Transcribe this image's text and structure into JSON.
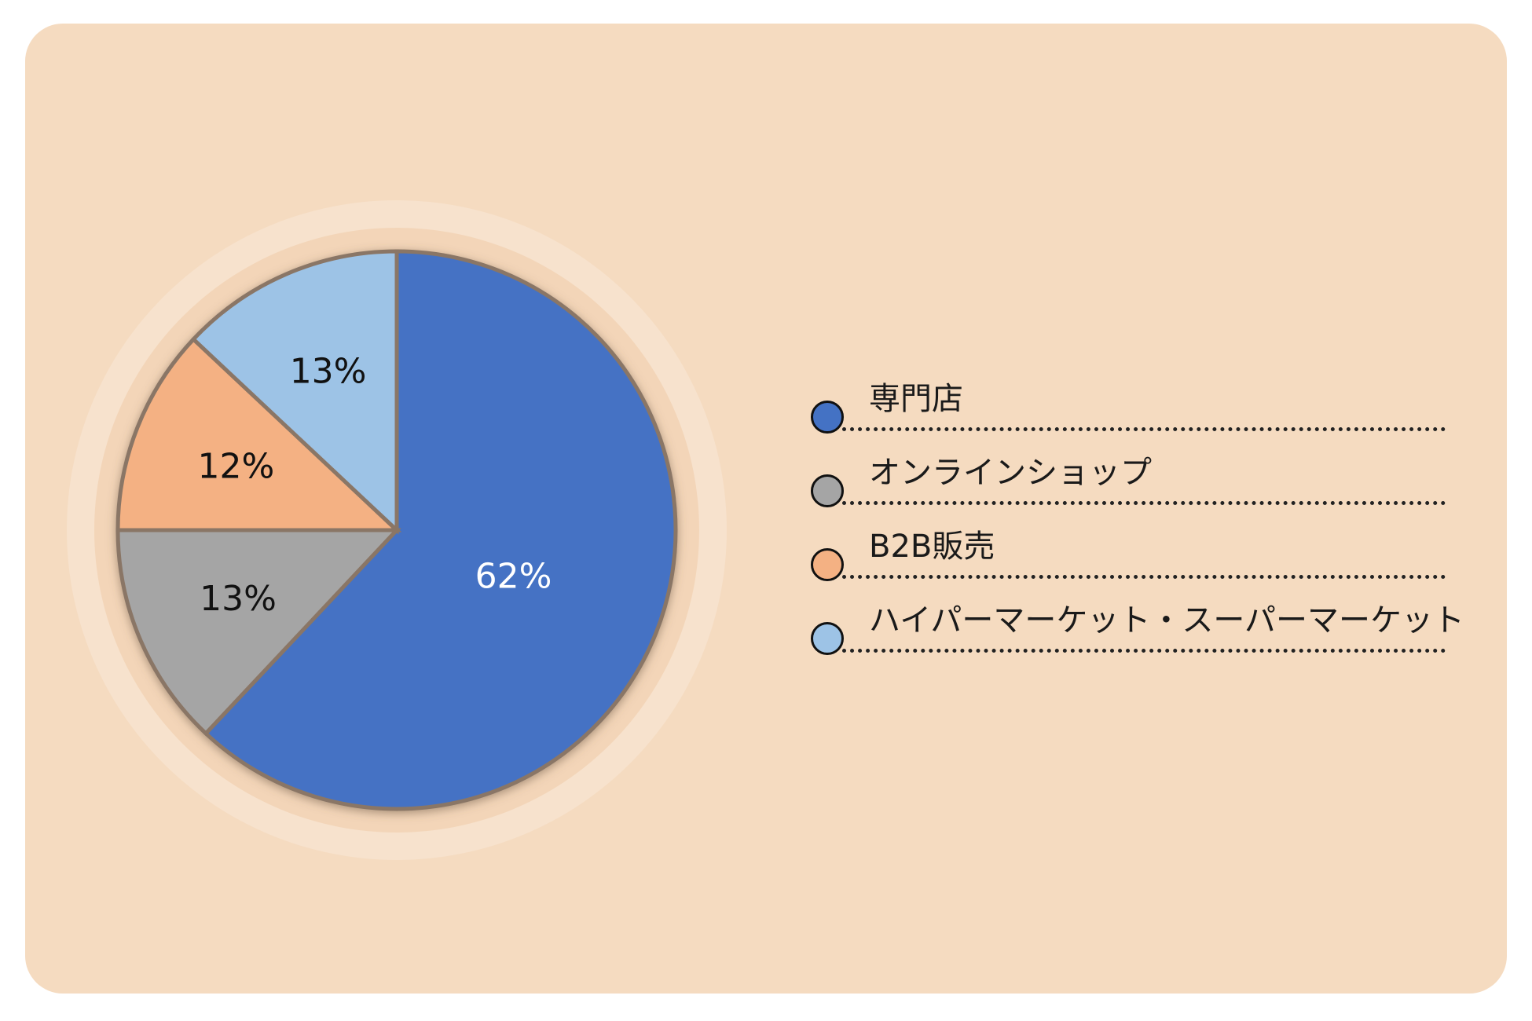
{
  "chart_data": {
    "type": "pie",
    "title": "",
    "slices": [
      {
        "label": "専門店",
        "value": 62,
        "value_label": "62%",
        "color": "#4472c4",
        "text_color": "#ffffff"
      },
      {
        "label": "オンラインショップ",
        "value": 13,
        "value_label": "13%",
        "color": "#a5a5a5",
        "text_color": "#111111"
      },
      {
        "label": "B2B販売",
        "value": 12,
        "value_label": "12%",
        "color": "#f4b183",
        "text_color": "#111111"
      },
      {
        "label": "ハイパーマーケット・スーパーマーケット",
        "value": 13,
        "value_label": "13%",
        "color": "#9dc3e6",
        "text_color": "#111111"
      }
    ],
    "start_angle_deg": 0,
    "direction": "clockwise",
    "legend_position": "right"
  },
  "colors": {
    "card_background": "#f5dbc0",
    "ring_outer": "#f7e2cd",
    "ring_inner": "#f3d5b8",
    "slice_border": "#8a7666"
  }
}
